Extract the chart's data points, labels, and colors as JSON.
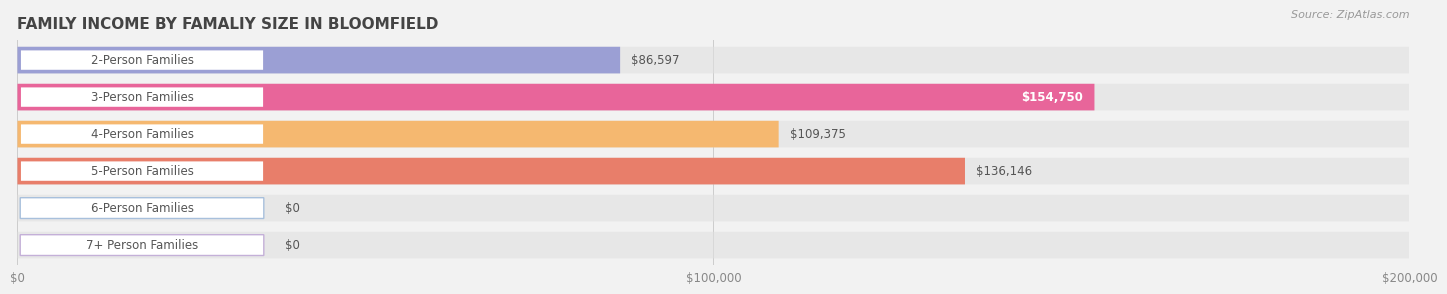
{
  "title": "FAMILY INCOME BY FAMALIY SIZE IN BLOOMFIELD",
  "source": "Source: ZipAtlas.com",
  "categories": [
    "2-Person Families",
    "3-Person Families",
    "4-Person Families",
    "5-Person Families",
    "6-Person Families",
    "7+ Person Families"
  ],
  "values": [
    86597,
    154750,
    109375,
    136146,
    0,
    0
  ],
  "bar_colors": [
    "#9b9fd4",
    "#e8659a",
    "#f5b870",
    "#e87e6a",
    "#a8c0dc",
    "#c4b0d8"
  ],
  "xmax": 200000,
  "xticks": [
    0,
    100000,
    200000
  ],
  "xtick_labels": [
    "$0",
    "$100,000",
    "$200,000"
  ],
  "fig_bg_color": "#f2f2f2",
  "bar_bg_color": "#e0e0e0",
  "title_fontsize": 11,
  "source_fontsize": 8,
  "label_fontsize": 8.5,
  "value_fontsize": 8.5,
  "bar_height": 0.72,
  "bar_gap": 1.0
}
